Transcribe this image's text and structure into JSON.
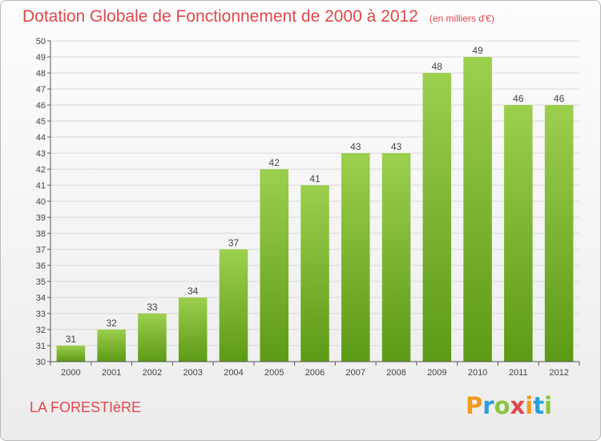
{
  "header": {
    "title": "Dotation Globale de Fonctionnement de 2000 à 2012",
    "subtitle": "(en milliers d'€)"
  },
  "footer": {
    "commune": "LA FORESTIèRE",
    "brand_text": "Proxiti",
    "brand_letters": [
      {
        "ch": "P",
        "color": "#f39a1e"
      },
      {
        "ch": "r",
        "color": "#2a9fd6"
      },
      {
        "ch": "o",
        "color": "#8bc53f"
      },
      {
        "ch": "x",
        "color": "#e0474c"
      },
      {
        "ch": "i",
        "color": "#f39a1e"
      },
      {
        "ch": "t",
        "color": "#2a9fd6"
      },
      {
        "ch": "i",
        "color": "#8bc53f"
      }
    ]
  },
  "colors": {
    "bar_top": "#9ccf4e",
    "bar_bottom": "#5c9a16",
    "title": "#e0474c",
    "axis": "#555555",
    "grid": "#d8d8d8"
  },
  "chart_data": {
    "type": "bar",
    "title": "Dotation Globale de Fonctionnement de 2000 à 2012",
    "subtitle": "(en milliers d'€)",
    "categories": [
      "2000",
      "2001",
      "2002",
      "2003",
      "2004",
      "2005",
      "2006",
      "2007",
      "2008",
      "2009",
      "2010",
      "2011",
      "2012"
    ],
    "values": [
      31,
      32,
      33,
      34,
      37,
      42,
      41,
      43,
      43,
      48,
      49,
      46,
      46
    ],
    "ylim": [
      30,
      50
    ],
    "yticks": [
      30,
      31,
      32,
      33,
      34,
      35,
      36,
      37,
      38,
      39,
      40,
      41,
      42,
      43,
      44,
      45,
      46,
      47,
      48,
      49,
      50
    ],
    "grid": true,
    "data_labels": true,
    "xlabel": "",
    "ylabel": ""
  }
}
